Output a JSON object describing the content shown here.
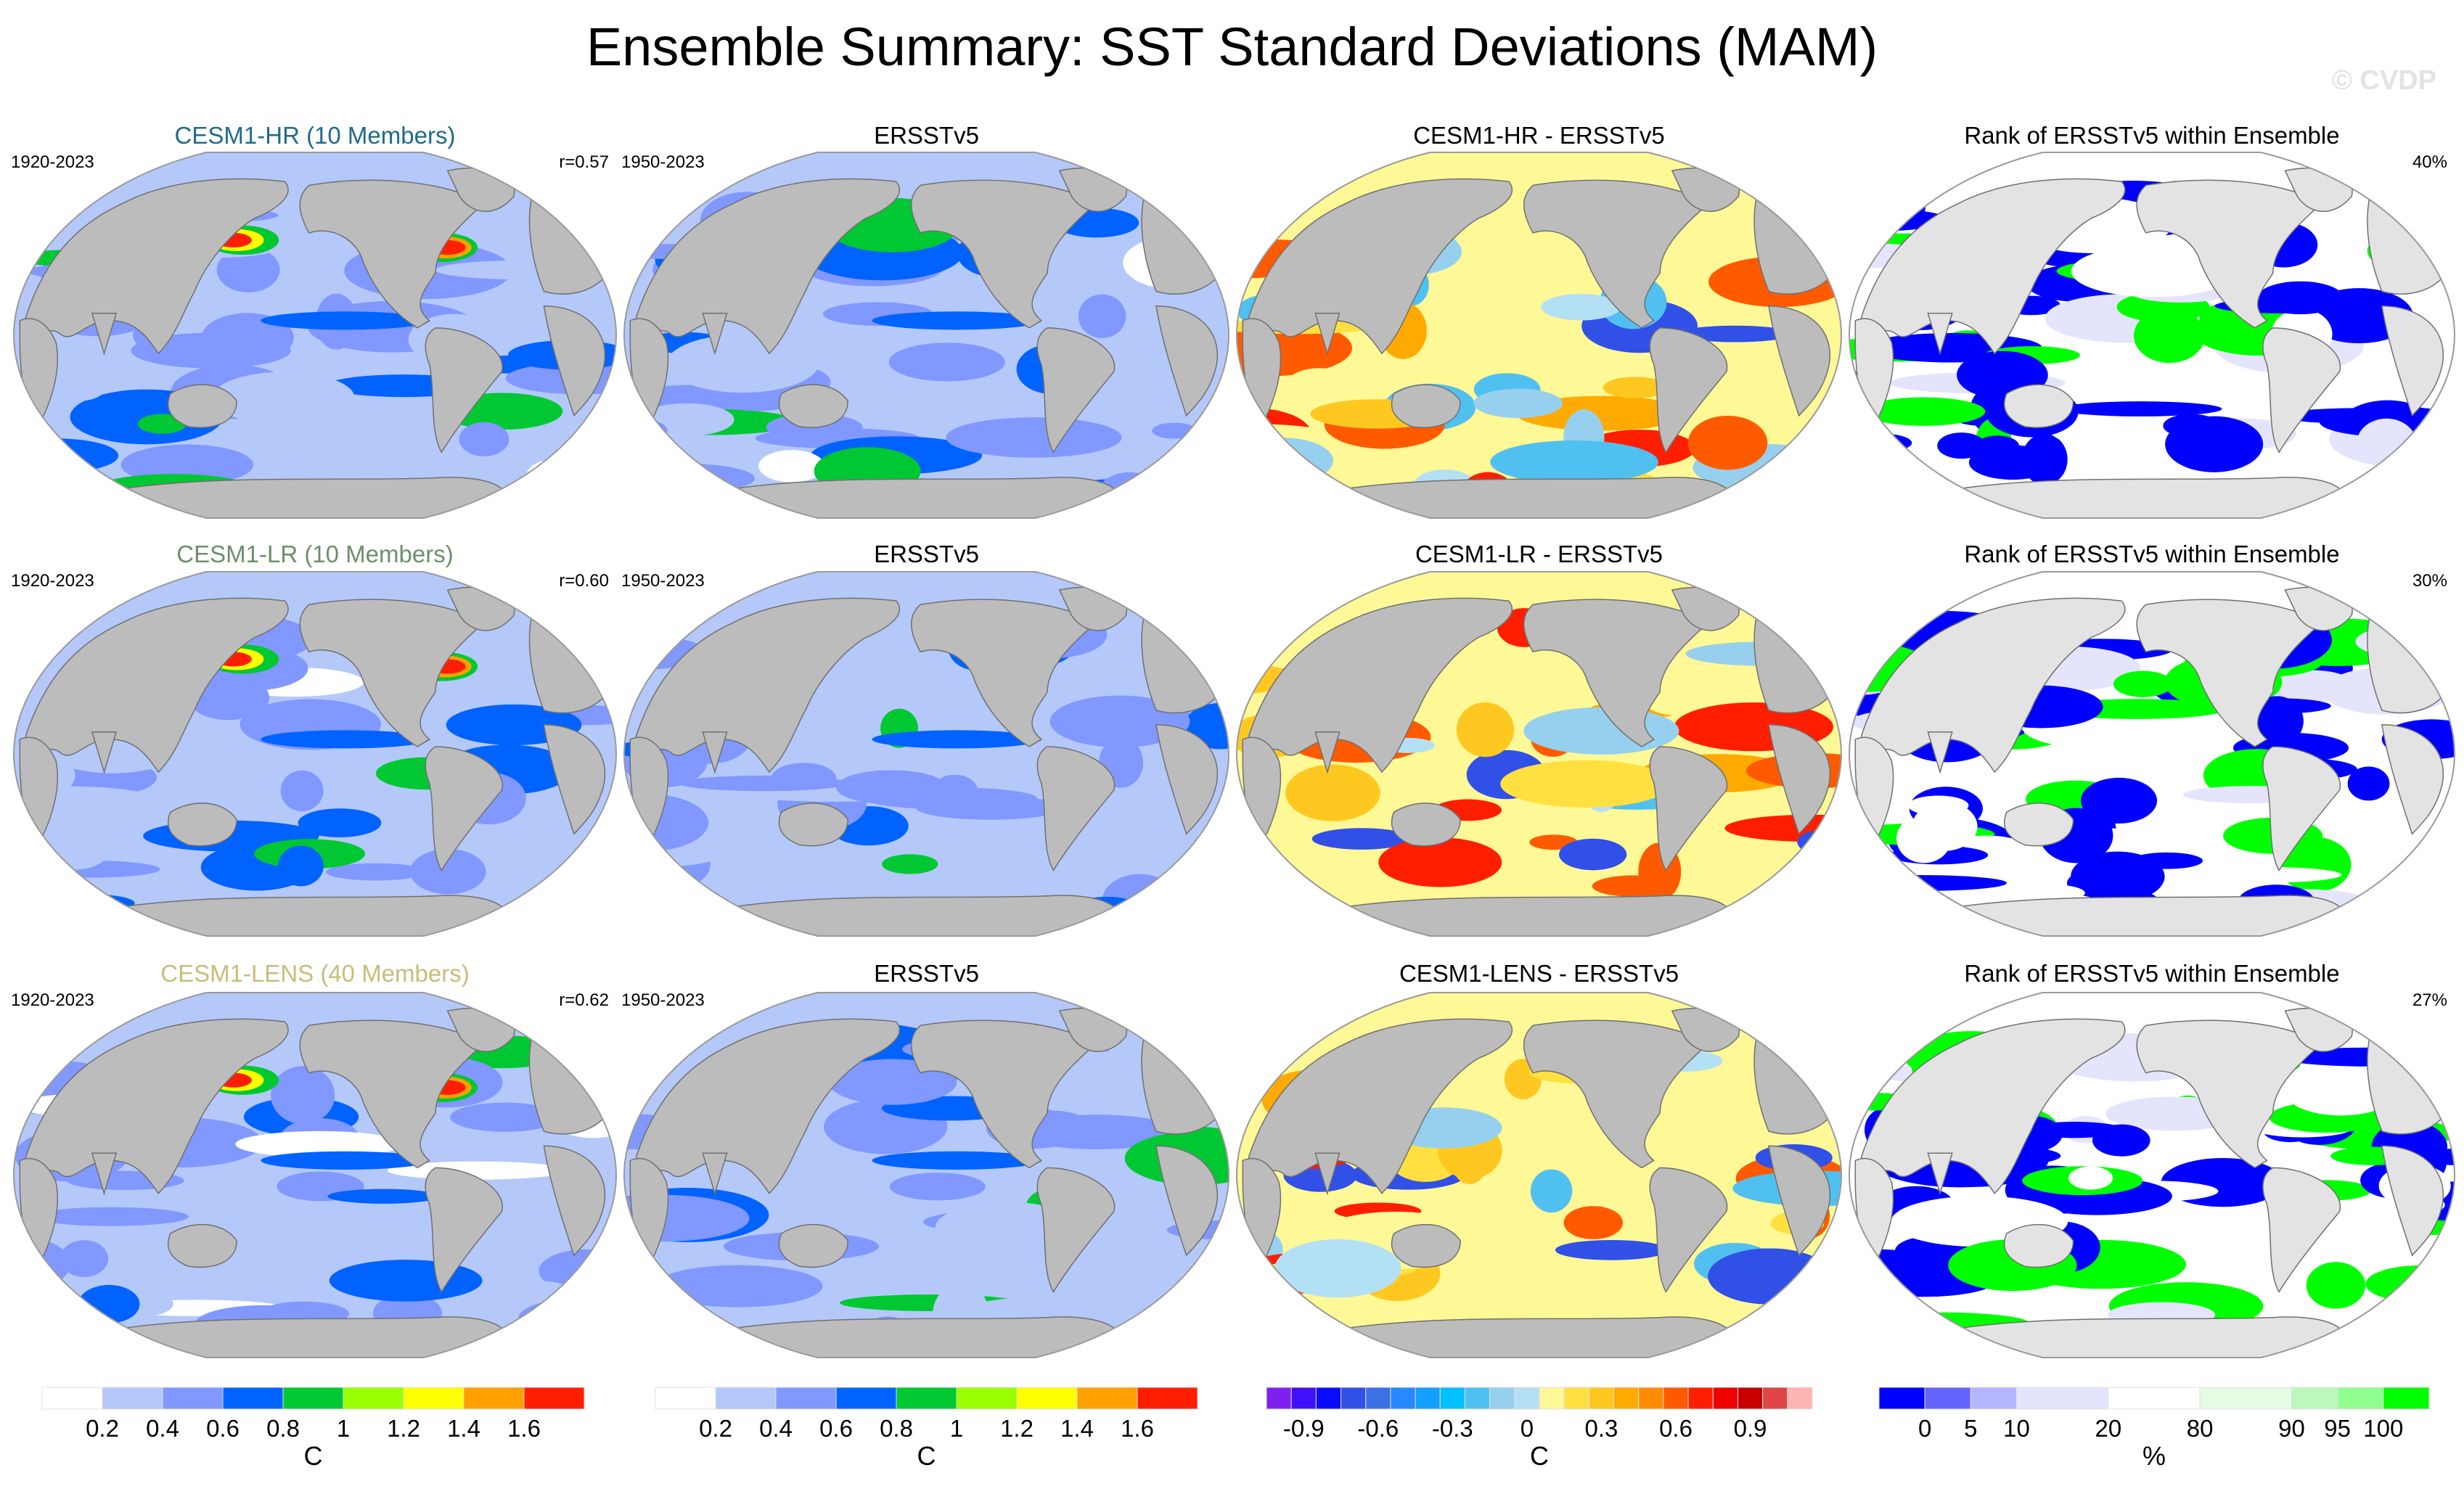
{
  "title": "Ensemble Summary: SST Standard Deviations (MAM)",
  "watermark": "© CVDP",
  "chart_data": {
    "type": "heatmap",
    "title": "Ensemble Summary: SST Standard Deviations (MAM)",
    "projection": "Robinson-like global map (Pacific-centered)",
    "colors": {
      "land": "#bcbcbc",
      "land_rank": "#e3e3e3",
      "coast": "#707070"
    },
    "rows": [
      {
        "model": "CESM1-HR (10 Members)",
        "model_color": "#1f6b8a",
        "panels": [
          {
            "kind": "std",
            "title": "CESM1-HR (10 Members)",
            "left": "1920-2023",
            "right": "r=0.57"
          },
          {
            "kind": "std",
            "title": "ERSSTv5",
            "left": "1950-2023",
            "right": ""
          },
          {
            "kind": "diff",
            "title": "CESM1-HR - ERSSTv5",
            "left": "",
            "right": ""
          },
          {
            "kind": "rank",
            "title": "Rank of ERSSTv5 within Ensemble",
            "left": "",
            "right": "40%"
          }
        ]
      },
      {
        "model": "CESM1-LR (10 Members)",
        "model_color": "#6b8f6b",
        "panels": [
          {
            "kind": "std",
            "title": "CESM1-LR (10 Members)",
            "left": "1920-2023",
            "right": "r=0.60"
          },
          {
            "kind": "std",
            "title": "ERSSTv5",
            "left": "1950-2023",
            "right": ""
          },
          {
            "kind": "diff",
            "title": "CESM1-LR - ERSSTv5",
            "left": "",
            "right": ""
          },
          {
            "kind": "rank",
            "title": "Rank of ERSSTv5 within Ensemble",
            "left": "",
            "right": "30%"
          }
        ]
      },
      {
        "model": "CESM1-LENS (40 Members)",
        "model_color": "#c9bd7a",
        "panels": [
          {
            "kind": "std",
            "title": "CESM1-LENS (40 Members)",
            "left": "1920-2023",
            "right": "r=0.62"
          },
          {
            "kind": "std",
            "title": "ERSSTv5",
            "left": "1950-2023",
            "right": ""
          },
          {
            "kind": "diff",
            "title": "CESM1-LENS - ERSSTv5",
            "left": "",
            "right": ""
          },
          {
            "kind": "rank",
            "title": "Rank of ERSSTv5 within Ensemble",
            "left": "",
            "right": "27%"
          }
        ]
      }
    ],
    "colorbars": [
      {
        "name": "std-model",
        "unit": "C",
        "levels": [
          "0.2",
          "0.4",
          "0.6",
          "0.8",
          "1",
          "1.2",
          "1.4",
          "1.6"
        ],
        "colors": [
          "#ffffff",
          "#b4c8fa",
          "#8098ff",
          "#0062ff",
          "#00c832",
          "#98ff00",
          "#ffff00",
          "#ffa000",
          "#ff1e00"
        ]
      },
      {
        "name": "std-obs",
        "unit": "C",
        "levels": [
          "0.2",
          "0.4",
          "0.6",
          "0.8",
          "1",
          "1.2",
          "1.4",
          "1.6"
        ],
        "colors": [
          "#ffffff",
          "#b4c8fa",
          "#8098ff",
          "#0062ff",
          "#00c832",
          "#98ff00",
          "#ffff00",
          "#ffa000",
          "#ff1e00"
        ]
      },
      {
        "name": "diff",
        "unit": "C",
        "levels": [
          "-0.9",
          "-0.6",
          "-0.3",
          "0",
          "0.3",
          "0.6",
          "0.9"
        ],
        "level_positions": [
          1.5,
          4.5,
          7.5,
          10.5,
          13.5,
          16.5,
          19.5
        ],
        "colors": [
          "#8020f0",
          "#4010f8",
          "#0a0aff",
          "#3050e8",
          "#3c70e6",
          "#2888ff",
          "#14a0ff",
          "#00c0ff",
          "#50c0f0",
          "#96d0ee",
          "#b4e0f6",
          "#fff896",
          "#ffe040",
          "#ffc820",
          "#ffaa00",
          "#ff8c00",
          "#ff5a00",
          "#ff1e00",
          "#f00000",
          "#c80000",
          "#e04646",
          "#ffb4b4"
        ]
      },
      {
        "name": "rank",
        "unit": "%",
        "levels": [
          "0",
          "5",
          "10",
          "20",
          "80",
          "90",
          "95",
          "100"
        ],
        "colors": [
          "#0000ff",
          "#6464ff",
          "#b4b4ff",
          "#e4e4fc",
          "#ffffff",
          "#e4fce4",
          "#bcf8bc",
          "#90ff90",
          "#00ff00"
        ],
        "widths": [
          1,
          1,
          1,
          2,
          2,
          2,
          1,
          1,
          1
        ]
      }
    ],
    "field_palettes": {
      "std": [
        "#ffffff",
        "#b4c8fa",
        "#8098ff",
        "#0062ff",
        "#00c832",
        "#98ff00",
        "#ffff00",
        "#ffa000",
        "#ff1e00"
      ],
      "diff": [
        "#3050e8",
        "#50c0f0",
        "#96d0ee",
        "#b4e0f6",
        "#fff896",
        "#ffe040",
        "#ffc820",
        "#ffaa00",
        "#ff5a00",
        "#ff1e00"
      ],
      "rank": [
        "#0000ff",
        "#e4e4fc",
        "#ffffff",
        "#e4fce4",
        "#00ff00"
      ]
    }
  }
}
